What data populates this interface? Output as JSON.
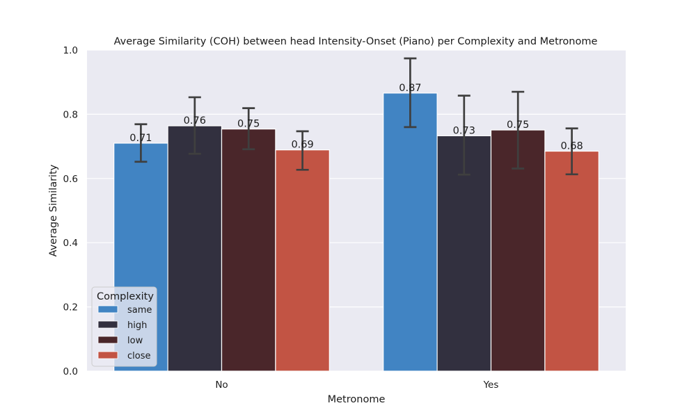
{
  "chart_data": {
    "type": "bar",
    "title": "Average Similarity (COH) between head Intensity-Onset (Piano) per Complexity and Metronome",
    "xlabel": "Metronome",
    "ylabel": "Average Similarity",
    "categories": [
      "No",
      "Yes"
    ],
    "ylim": [
      0.0,
      1.0
    ],
    "yticks": [
      0.0,
      0.2,
      0.4,
      0.6,
      0.8,
      1.0
    ],
    "ytick_labels": [
      "0.0",
      "0.2",
      "0.4",
      "0.6",
      "0.8",
      "1.0"
    ],
    "grid": true,
    "legend": {
      "title": "Complexity",
      "placement": "lower-left"
    },
    "series": [
      {
        "name": "same",
        "color": "#4184c3",
        "values": [
          0.71,
          0.866
        ],
        "labels": [
          "0.71",
          "0.87"
        ],
        "err_low": [
          0.652,
          0.76
        ],
        "err_high": [
          0.769,
          0.974
        ]
      },
      {
        "name": "high",
        "color": "#32303f",
        "values": [
          0.764,
          0.733
        ],
        "labels": [
          "0.76",
          "0.73"
        ],
        "err_low": [
          0.677,
          0.612
        ],
        "err_high": [
          0.853,
          0.858
        ]
      },
      {
        "name": "low",
        "color": "#4a262a",
        "values": [
          0.754,
          0.751
        ],
        "labels": [
          "0.75",
          "0.75"
        ],
        "err_low": [
          0.691,
          0.631
        ],
        "err_high": [
          0.819,
          0.87
        ]
      },
      {
        "name": "close",
        "color": "#c25444",
        "values": [
          0.689,
          0.685
        ],
        "labels": [
          "0.69",
          "0.68"
        ],
        "err_low": [
          0.627,
          0.613
        ],
        "err_high": [
          0.747,
          0.756
        ]
      }
    ]
  }
}
